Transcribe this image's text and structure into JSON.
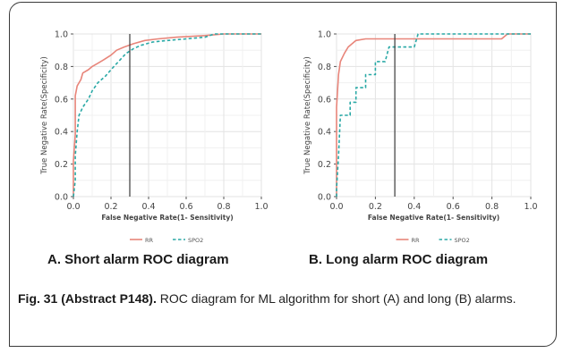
{
  "chart_data": [
    {
      "type": "line",
      "panel_title": "A. Short alarm ROC diagram",
      "xlabel": "False Negative Rate(1- Sensitivity)",
      "ylabel": "True Negative Rate(Specificity)",
      "xlim": [
        0,
        1
      ],
      "ylim": [
        0,
        1
      ],
      "x_ticks": [
        "0.0",
        "0.2",
        "0.4",
        "0.6",
        "0.8",
        "1.0"
      ],
      "y_ticks": [
        "0.0",
        "0.2",
        "0.4",
        "0.6",
        "0.8",
        "1.0"
      ],
      "vline_x": 0.3,
      "grid": true,
      "legend_position": "bottom",
      "series": [
        {
          "name": "RR",
          "color": "#e8857a",
          "dash": "solid",
          "points": [
            [
              0,
              0
            ],
            [
              0,
              0.22
            ],
            [
              0.01,
              0.38
            ],
            [
              0.01,
              0.62
            ],
            [
              0.02,
              0.68
            ],
            [
              0.04,
              0.72
            ],
            [
              0.05,
              0.76
            ],
            [
              0.08,
              0.78
            ],
            [
              0.1,
              0.8
            ],
            [
              0.13,
              0.82
            ],
            [
              0.16,
              0.84
            ],
            [
              0.2,
              0.87
            ],
            [
              0.23,
              0.9
            ],
            [
              0.27,
              0.92
            ],
            [
              0.32,
              0.94
            ],
            [
              0.38,
              0.96
            ],
            [
              0.45,
              0.97
            ],
            [
              0.55,
              0.98
            ],
            [
              0.7,
              0.99
            ],
            [
              0.8,
              1.0
            ],
            [
              1.0,
              1.0
            ]
          ]
        },
        {
          "name": "SPO2",
          "color": "#2aa9a6",
          "dash": "dashed",
          "points": [
            [
              0,
              0
            ],
            [
              0.01,
              0.1
            ],
            [
              0.01,
              0.25
            ],
            [
              0.02,
              0.4
            ],
            [
              0.03,
              0.5
            ],
            [
              0.05,
              0.55
            ],
            [
              0.08,
              0.6
            ],
            [
              0.1,
              0.65
            ],
            [
              0.13,
              0.7
            ],
            [
              0.17,
              0.74
            ],
            [
              0.2,
              0.78
            ],
            [
              0.24,
              0.83
            ],
            [
              0.28,
              0.88
            ],
            [
              0.32,
              0.91
            ],
            [
              0.36,
              0.93
            ],
            [
              0.42,
              0.95
            ],
            [
              0.5,
              0.96
            ],
            [
              0.6,
              0.97
            ],
            [
              0.7,
              0.98
            ],
            [
              0.75,
              1.0
            ],
            [
              1.0,
              1.0
            ]
          ]
        }
      ]
    },
    {
      "type": "line",
      "panel_title": "B. Long alarm ROC diagram",
      "xlabel": "False Negative Rate(1- Sensitivity)",
      "ylabel": "True Negative Rate(Specificity)",
      "xlim": [
        0,
        1
      ],
      "ylim": [
        0,
        1
      ],
      "x_ticks": [
        "0.0",
        "0.2",
        "0.4",
        "0.6",
        "0.8",
        "1.0"
      ],
      "y_ticks": [
        "0.0",
        "0.2",
        "0.4",
        "0.6",
        "0.8",
        "1.0"
      ],
      "vline_x": 0.3,
      "grid": true,
      "legend_position": "bottom",
      "series": [
        {
          "name": "RR",
          "color": "#e8857a",
          "dash": "solid",
          "points": [
            [
              0,
              0
            ],
            [
              0,
              0.55
            ],
            [
              0.01,
              0.75
            ],
            [
              0.02,
              0.83
            ],
            [
              0.04,
              0.88
            ],
            [
              0.06,
              0.92
            ],
            [
              0.08,
              0.94
            ],
            [
              0.1,
              0.96
            ],
            [
              0.15,
              0.97
            ],
            [
              0.2,
              0.97
            ],
            [
              0.85,
              0.97
            ],
            [
              0.88,
              1.0
            ],
            [
              1.0,
              1.0
            ]
          ]
        },
        {
          "name": "SPO2",
          "color": "#2aa9a6",
          "dash": "dashed",
          "points": [
            [
              0,
              0
            ],
            [
              0,
              0.05
            ],
            [
              0.01,
              0.25
            ],
            [
              0.02,
              0.5
            ],
            [
              0.05,
              0.5
            ],
            [
              0.07,
              0.5
            ],
            [
              0.07,
              0.58
            ],
            [
              0.1,
              0.58
            ],
            [
              0.1,
              0.67
            ],
            [
              0.15,
              0.67
            ],
            [
              0.15,
              0.75
            ],
            [
              0.2,
              0.75
            ],
            [
              0.2,
              0.83
            ],
            [
              0.25,
              0.83
            ],
            [
              0.27,
              0.92
            ],
            [
              0.4,
              0.92
            ],
            [
              0.42,
              1.0
            ],
            [
              1.0,
              1.0
            ]
          ]
        }
      ]
    }
  ],
  "caption": {
    "label": "Fig. 31 (Abstract P148).",
    "text": " ROC diagram for ML algorithm for short (A) and long (B) alarms."
  }
}
